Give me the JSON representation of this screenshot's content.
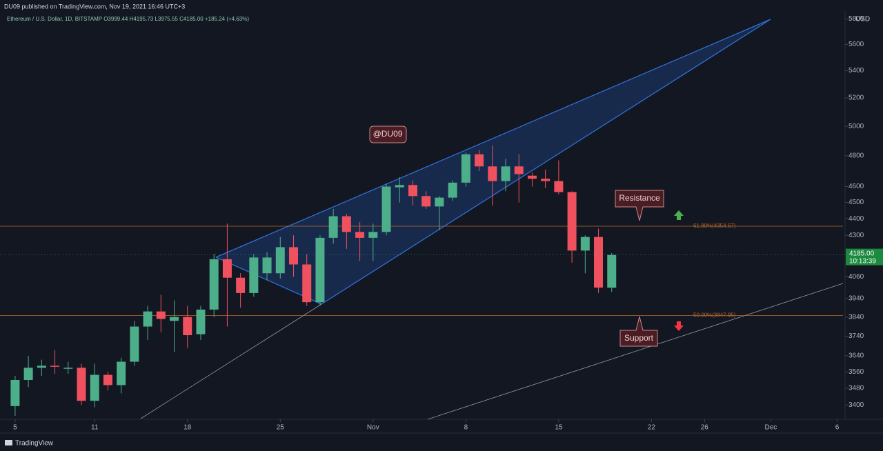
{
  "chart_data": {
    "type": "candlestick",
    "header": "DU09 published on TradingView.com, Nov 19, 2021 16:46 UTC+3",
    "symbol_line": "Ethereum / U.S. Dollar, 1D, BITSTAMP  O3999.44 H4195.73 L3975.55 C4185.00 +185.24 (+4.63%)",
    "currency": "USD",
    "log_scale": true,
    "grid": false,
    "ylim": [
      3340,
      5870
    ],
    "yticks": [
      5800,
      5600,
      5400,
      5200,
      5000,
      4800,
      4600,
      4500,
      4400,
      4300,
      4060,
      3940,
      3840,
      3740,
      3640,
      3560,
      3480,
      3400
    ],
    "xlim": [
      3.86,
      67.6
    ],
    "xticks": [
      5,
      11,
      18,
      25,
      {
        "value": 32,
        "label": "Nov"
      },
      {
        "value": 39,
        "label": "8"
      },
      {
        "value": 46,
        "label": "15"
      },
      {
        "value": 53,
        "label": "22"
      },
      {
        "value": 57,
        "label": "26"
      },
      {
        "value": 62,
        "label": "Dec"
      },
      {
        "value": 67,
        "label": "6"
      }
    ],
    "x": [
      5,
      6,
      7,
      8,
      9,
      10,
      11,
      12,
      13,
      14,
      15,
      16,
      17,
      18,
      19,
      20,
      21,
      22,
      23,
      24,
      25,
      26,
      27,
      28,
      29,
      30,
      31,
      32,
      33,
      34,
      35,
      36,
      37,
      38,
      39,
      40,
      41,
      42,
      43,
      44,
      45,
      46,
      47,
      48,
      49,
      50
    ],
    "open": [
      3395,
      3520,
      3580,
      3590,
      3575,
      3580,
      3420,
      3545,
      3495,
      3610,
      3790,
      3870,
      3820,
      3840,
      3750,
      3880,
      4160,
      4055,
      3970,
      4080,
      4080,
      4230,
      4130,
      3920,
      4285,
      4415,
      4320,
      4285,
      4320,
      4595,
      4610,
      4540,
      4475,
      4530,
      4625,
      4810,
      4730,
      4635,
      4730,
      4670,
      4650,
      4635,
      4565,
      4210,
      4290,
      3999.44
    ],
    "high": [
      3540,
      3640,
      3620,
      3670,
      3610,
      3600,
      3600,
      3560,
      3630,
      3820,
      3900,
      3960,
      3930,
      3900,
      3900,
      4190,
      4370,
      4080,
      4190,
      4200,
      4290,
      4300,
      4190,
      4300,
      4460,
      4430,
      4380,
      4370,
      4620,
      4660,
      4640,
      4570,
      4540,
      4640,
      4820,
      4840,
      4870,
      4780,
      4810,
      4690,
      4710,
      4770,
      4570,
      4300,
      4340,
      4195.73
    ],
    "low": [
      3350,
      3485,
      3540,
      3550,
      3550,
      3400,
      3390,
      3470,
      3455,
      3590,
      3720,
      3760,
      3660,
      3680,
      3720,
      3840,
      3790,
      3890,
      3950,
      4040,
      4050,
      4060,
      3900,
      3900,
      4250,
      4220,
      4150,
      4150,
      4300,
      4500,
      4480,
      4460,
      4330,
      4510,
      4600,
      4700,
      4480,
      4570,
      4500,
      4600,
      4590,
      4550,
      4140,
      4080,
      3970,
      3975.55
    ],
    "close": [
      3520,
      3580,
      3590,
      3585,
      3580,
      3420,
      3545,
      3495,
      3610,
      3790,
      3870,
      3830,
      3840,
      3745,
      3880,
      4160,
      4055,
      3970,
      4170,
      4170,
      4230,
      4130,
      3920,
      4285,
      4415,
      4320,
      4285,
      4320,
      4600,
      4610,
      4540,
      4475,
      4530,
      4625,
      4810,
      4730,
      4635,
      4730,
      4680,
      4650,
      4635,
      4565,
      4210,
      4290,
      4000,
      4185.0
    ],
    "up_color": "#4caf8a",
    "down_color": "#f0515e",
    "hline_color": "#b8692a",
    "hlines": [
      {
        "value": 4354.67,
        "label": "61.80%(4354.67)"
      },
      {
        "value": 3847.95,
        "label": "50.00%(3847.95)"
      }
    ],
    "price_label": {
      "value": 4185.0,
      "label": "4185.00"
    },
    "countdown": "10:13:39",
    "annotations": [
      "@DU09",
      "Resistance",
      "Support"
    ]
  },
  "footer_brand": "TradingView"
}
